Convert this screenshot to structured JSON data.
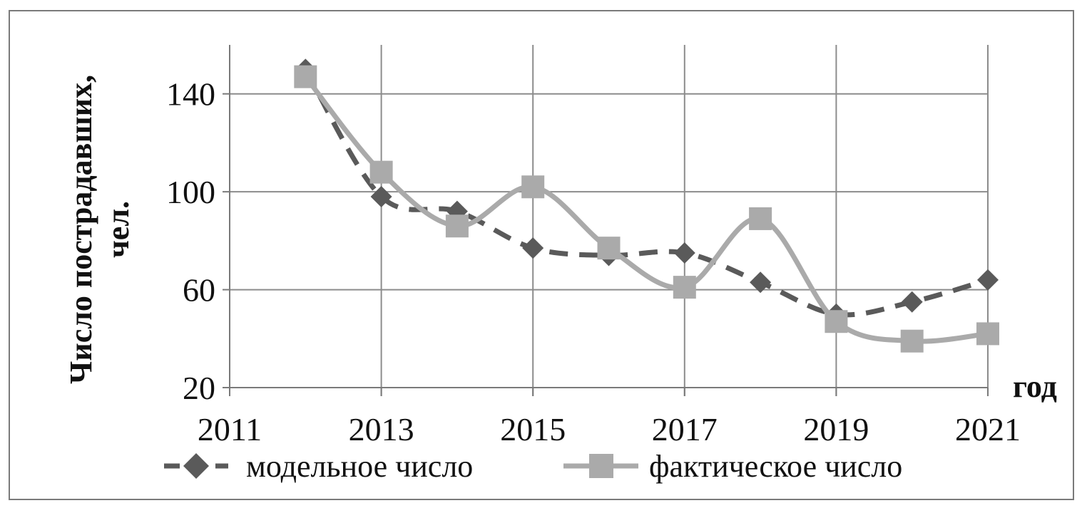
{
  "chart_data": {
    "type": "line",
    "ylabel_line1": "Число пострадавших,",
    "ylabel_line2": "чел.",
    "xlabel": "год",
    "x_ticks": [
      2011,
      2013,
      2015,
      2017,
      2019,
      2021
    ],
    "y_ticks": [
      20,
      60,
      100,
      140
    ],
    "xlim": [
      2011,
      2021
    ],
    "ylim": [
      20,
      160
    ],
    "grid": true,
    "legend_position": "bottom",
    "x": [
      2012,
      2013,
      2014,
      2015,
      2016,
      2017,
      2018,
      2019,
      2020,
      2021
    ],
    "series": [
      {
        "name": "модельное число",
        "values": [
          150,
          98,
          92,
          77,
          74,
          75,
          63,
          50,
          55,
          64
        ],
        "color": "#5a5a5a",
        "line": "dashed",
        "marker": "diamond"
      },
      {
        "name": "фактическое число",
        "values": [
          147,
          108,
          86,
          102,
          77,
          61,
          89,
          47,
          39,
          42
        ],
        "color": "#aaaaaa",
        "line": "smooth",
        "marker": "square"
      }
    ]
  }
}
